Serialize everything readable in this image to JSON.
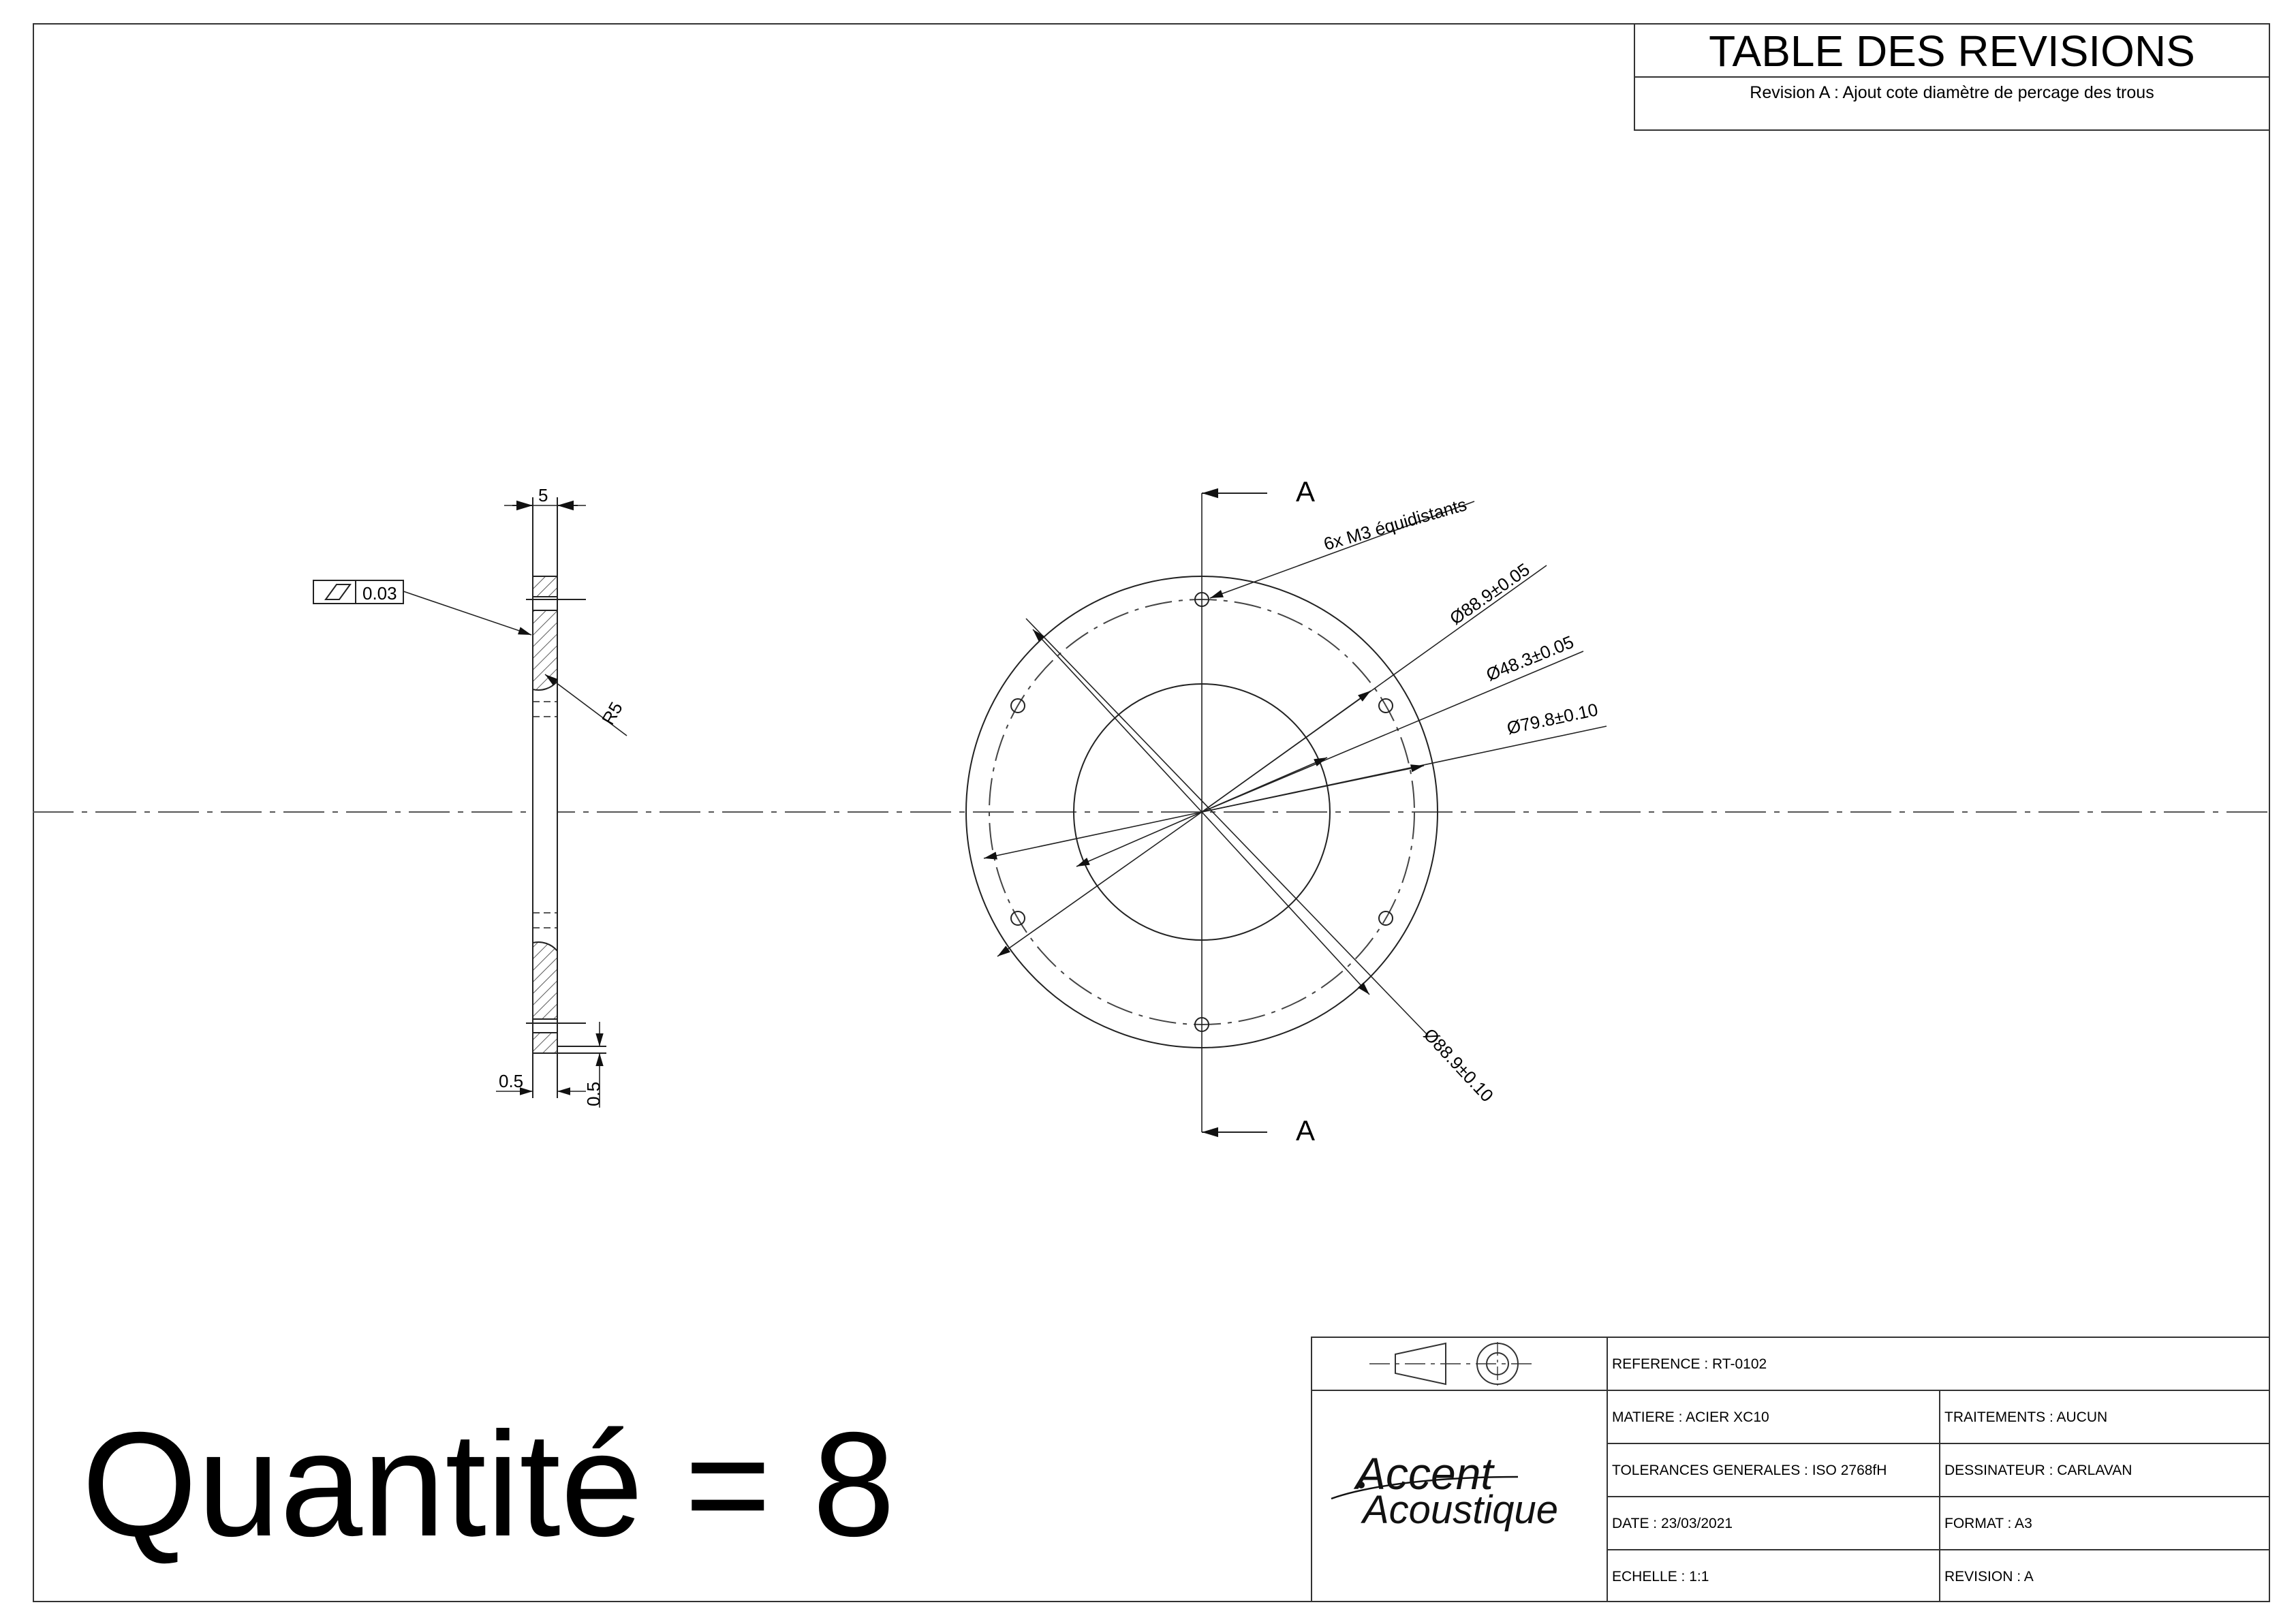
{
  "revision_table": {
    "title": "TABLE DES REVISIONS",
    "entries": [
      "Revision A : Ajout cote diamètre de percage des trous"
    ]
  },
  "views": {
    "side": {
      "thickness": "5",
      "flatness_tolerance": "0.03",
      "radius": "R5",
      "chamfer_width": "0.5",
      "chamfer_height": "0.5"
    },
    "front": {
      "section_label_top": "A",
      "section_label_bottom": "A",
      "hole_note": "6x M3 équidistants",
      "dim_pitch_circle": "Ø88.9±0.05",
      "dim_inner": "Ø48.3±0.05",
      "dim_outer": "Ø79.8±0.10",
      "dim_outside": "Ø88.9±0.10"
    }
  },
  "quantity": "Quantité = 8",
  "title_block": {
    "reference": "REFERENCE : RT-0102",
    "matiere": "MATIERE : ACIER XC10",
    "traitements": "TRAITEMENTS : AUCUN",
    "tolerances": "TOLERANCES GENERALES : ISO 2768fH",
    "dessinateur": "DESSINATEUR : CARLAVAN",
    "date": "DATE : 23/03/2021",
    "format": "FORMAT : A3",
    "echelle": "ECHELLE : 1:1",
    "revision": "REVISION : A",
    "logo_text": [
      "Accent",
      "Acoustique"
    ],
    "projection_symbol": "first-angle-projection-icon"
  }
}
